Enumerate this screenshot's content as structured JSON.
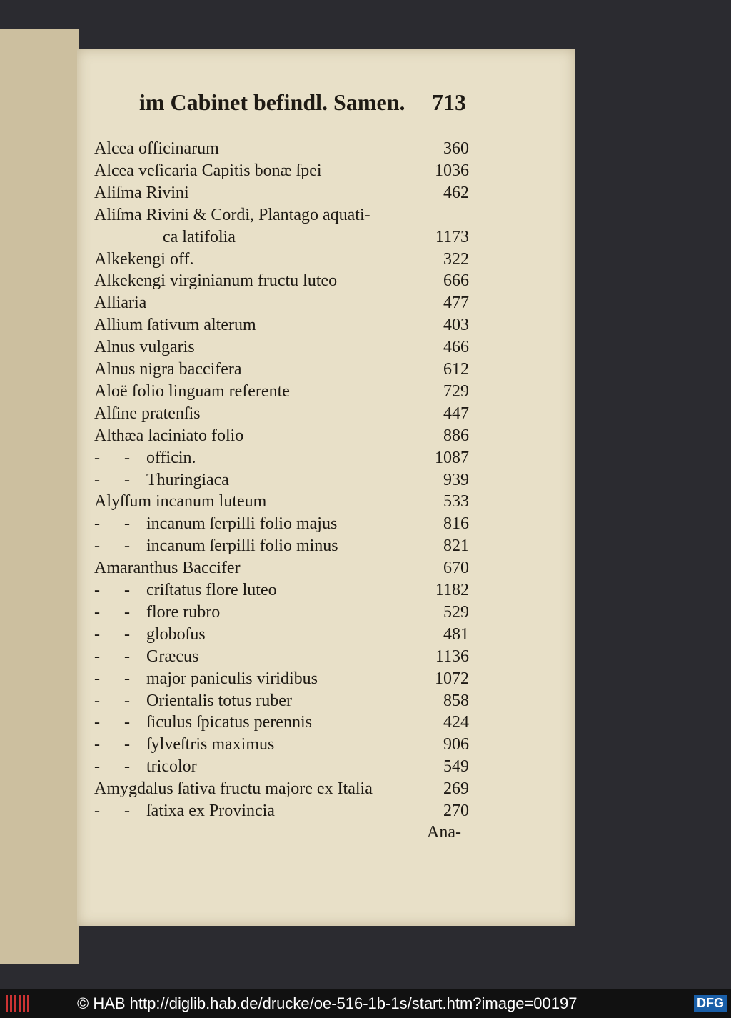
{
  "header": {
    "running_title": "im Cabinet befindl. Samen.",
    "page_number": "713"
  },
  "entries": [
    {
      "name": "Alcea officinarum",
      "number": 360
    },
    {
      "name": "Alcea veſicaria Capitis bonæ ſpei",
      "number": 1036
    },
    {
      "name": "Aliſma Rivini",
      "number": 462
    },
    {
      "name": "Aliſma Rivini & Cordi, Plantago aquati-",
      "continuation": "ca latifolia",
      "number": 1173
    },
    {
      "name": "Alkekengi off.",
      "number": 322
    },
    {
      "name": "Alkekengi virginianum fructu luteo",
      "number": 666
    },
    {
      "name": "Alliaria",
      "number": 477
    },
    {
      "name": "Allium ſativum alterum",
      "number": 403
    },
    {
      "name": "Alnus vulgaris",
      "number": 466
    },
    {
      "name": "Alnus nigra baccifera",
      "number": 612
    },
    {
      "name": "Aloë folio linguam referente",
      "number": 729
    },
    {
      "name": "Alſine pratenſis",
      "number": 447
    },
    {
      "name": "Althæa laciniato folio",
      "number": 886
    },
    {
      "ditto": "- -",
      "name": "officin.",
      "number": 1087
    },
    {
      "ditto": "- -",
      "name": "Thuringiaca",
      "number": 939
    },
    {
      "name": "Alyſſum incanum luteum",
      "number": 533
    },
    {
      "ditto": "- -",
      "name": "incanum ſerpilli folio majus",
      "number": 816
    },
    {
      "ditto": "- -",
      "name": "incanum ſerpilli folio minus",
      "number": 821
    },
    {
      "name": "Amaranthus Baccifer",
      "number": 670
    },
    {
      "ditto": "- -",
      "name": "criſtatus flore luteo",
      "number": 1182
    },
    {
      "ditto": "- -",
      "name": "flore rubro",
      "number": 529
    },
    {
      "ditto": "- -",
      "name": "globoſus",
      "number": 481
    },
    {
      "ditto": "- -",
      "name": "Græcus",
      "number": 1136
    },
    {
      "ditto": "- -",
      "name": "major paniculis viridibus",
      "number": 1072
    },
    {
      "ditto": "- -",
      "name": "Orientalis totus ruber",
      "number": 858
    },
    {
      "ditto": "- -",
      "name": "ſiculus ſpicatus perennis",
      "number": 424
    },
    {
      "ditto": "- -",
      "name": "ſylveſtris maximus",
      "number": 906
    },
    {
      "ditto": "- -",
      "name": "tricolor",
      "number": 549
    },
    {
      "name": "Amygdalus ſativa fructu majore ex Italia",
      "number": 269
    },
    {
      "ditto": "- -",
      "name": "ſatixa ex Provincia",
      "number": 270
    }
  ],
  "catchword": "Ana-",
  "footer": {
    "credit": "© HAB http://diglib.hab.de/drucke/oe-516-1b-1s/start.htm?image=00197",
    "logo": "DFG"
  }
}
